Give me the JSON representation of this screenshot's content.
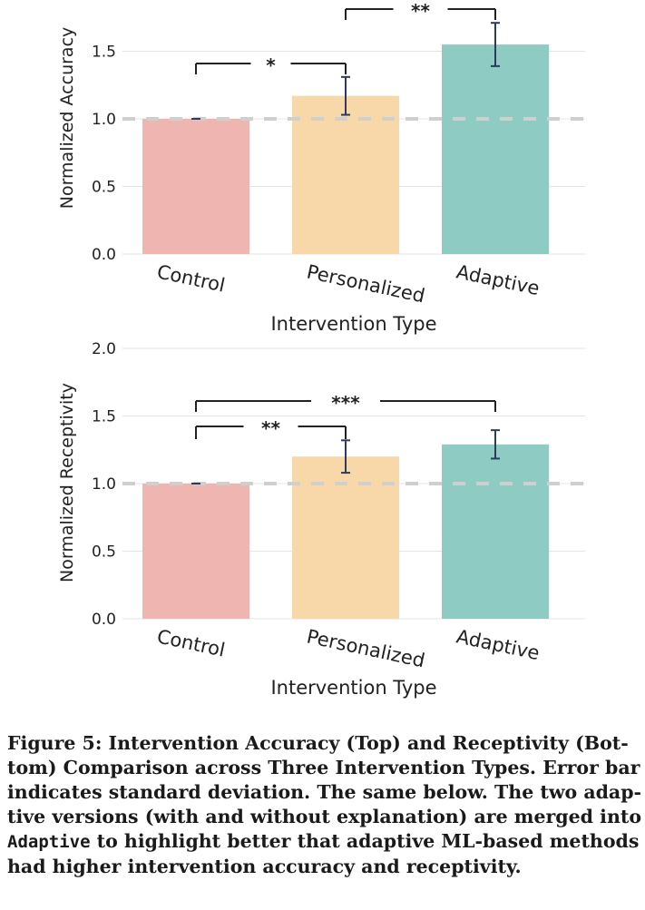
{
  "chart_data": [
    {
      "type": "bar",
      "title": "",
      "xlabel": "Intervention Type",
      "ylabel": "Normalized Accuracy",
      "categories": [
        "Control",
        "Personalized",
        "Adaptive"
      ],
      "values": [
        1.0,
        1.17,
        1.55
      ],
      "error": [
        0.0,
        0.14,
        0.16
      ],
      "colors": [
        "#efb5b0",
        "#f8d8a8",
        "#8ecbc3"
      ],
      "yticks": [
        "0.0",
        "0.5",
        "1.0",
        "1.5"
      ],
      "ylim": [
        0,
        1.85
      ],
      "reference_line": 1.0,
      "significance": [
        {
          "from": 0,
          "to": 1,
          "label": "*"
        },
        {
          "from": 1,
          "to": 2,
          "label": "**"
        }
      ]
    },
    {
      "type": "bar",
      "title": "",
      "xlabel": "Intervention Type",
      "ylabel": "Normalized Receptivity",
      "categories": [
        "Control",
        "Personalized",
        "Adaptive"
      ],
      "values": [
        1.0,
        1.2,
        1.29
      ],
      "error": [
        0.0,
        0.12,
        0.105
      ],
      "colors": [
        "#efb5b0",
        "#f8d8a8",
        "#8ecbc3"
      ],
      "yticks": [
        "0.0",
        "0.5",
        "1.0",
        "1.5",
        "2.0"
      ],
      "ylim": [
        0,
        2.0
      ],
      "reference_line": 1.0,
      "significance": [
        {
          "from": 0,
          "to": 1,
          "label": "**"
        },
        {
          "from": 0,
          "to": 2,
          "label": "***"
        }
      ]
    }
  ],
  "caption": {
    "line1": "Figure 5: Intervention Accuracy (Top) and Receptivity (Bot-",
    "line2": "tom) Comparison across Three Intervention Types. Error bar",
    "line3": "indicates standard deviation. The same below. The two adap-",
    "line4": "tive versions (with and without explanation) are merged into",
    "code": "Adaptive",
    "line5_rest": " to highlight better that adaptive ML-based methods",
    "line6": "had higher intervention accuracy and receptivity."
  }
}
